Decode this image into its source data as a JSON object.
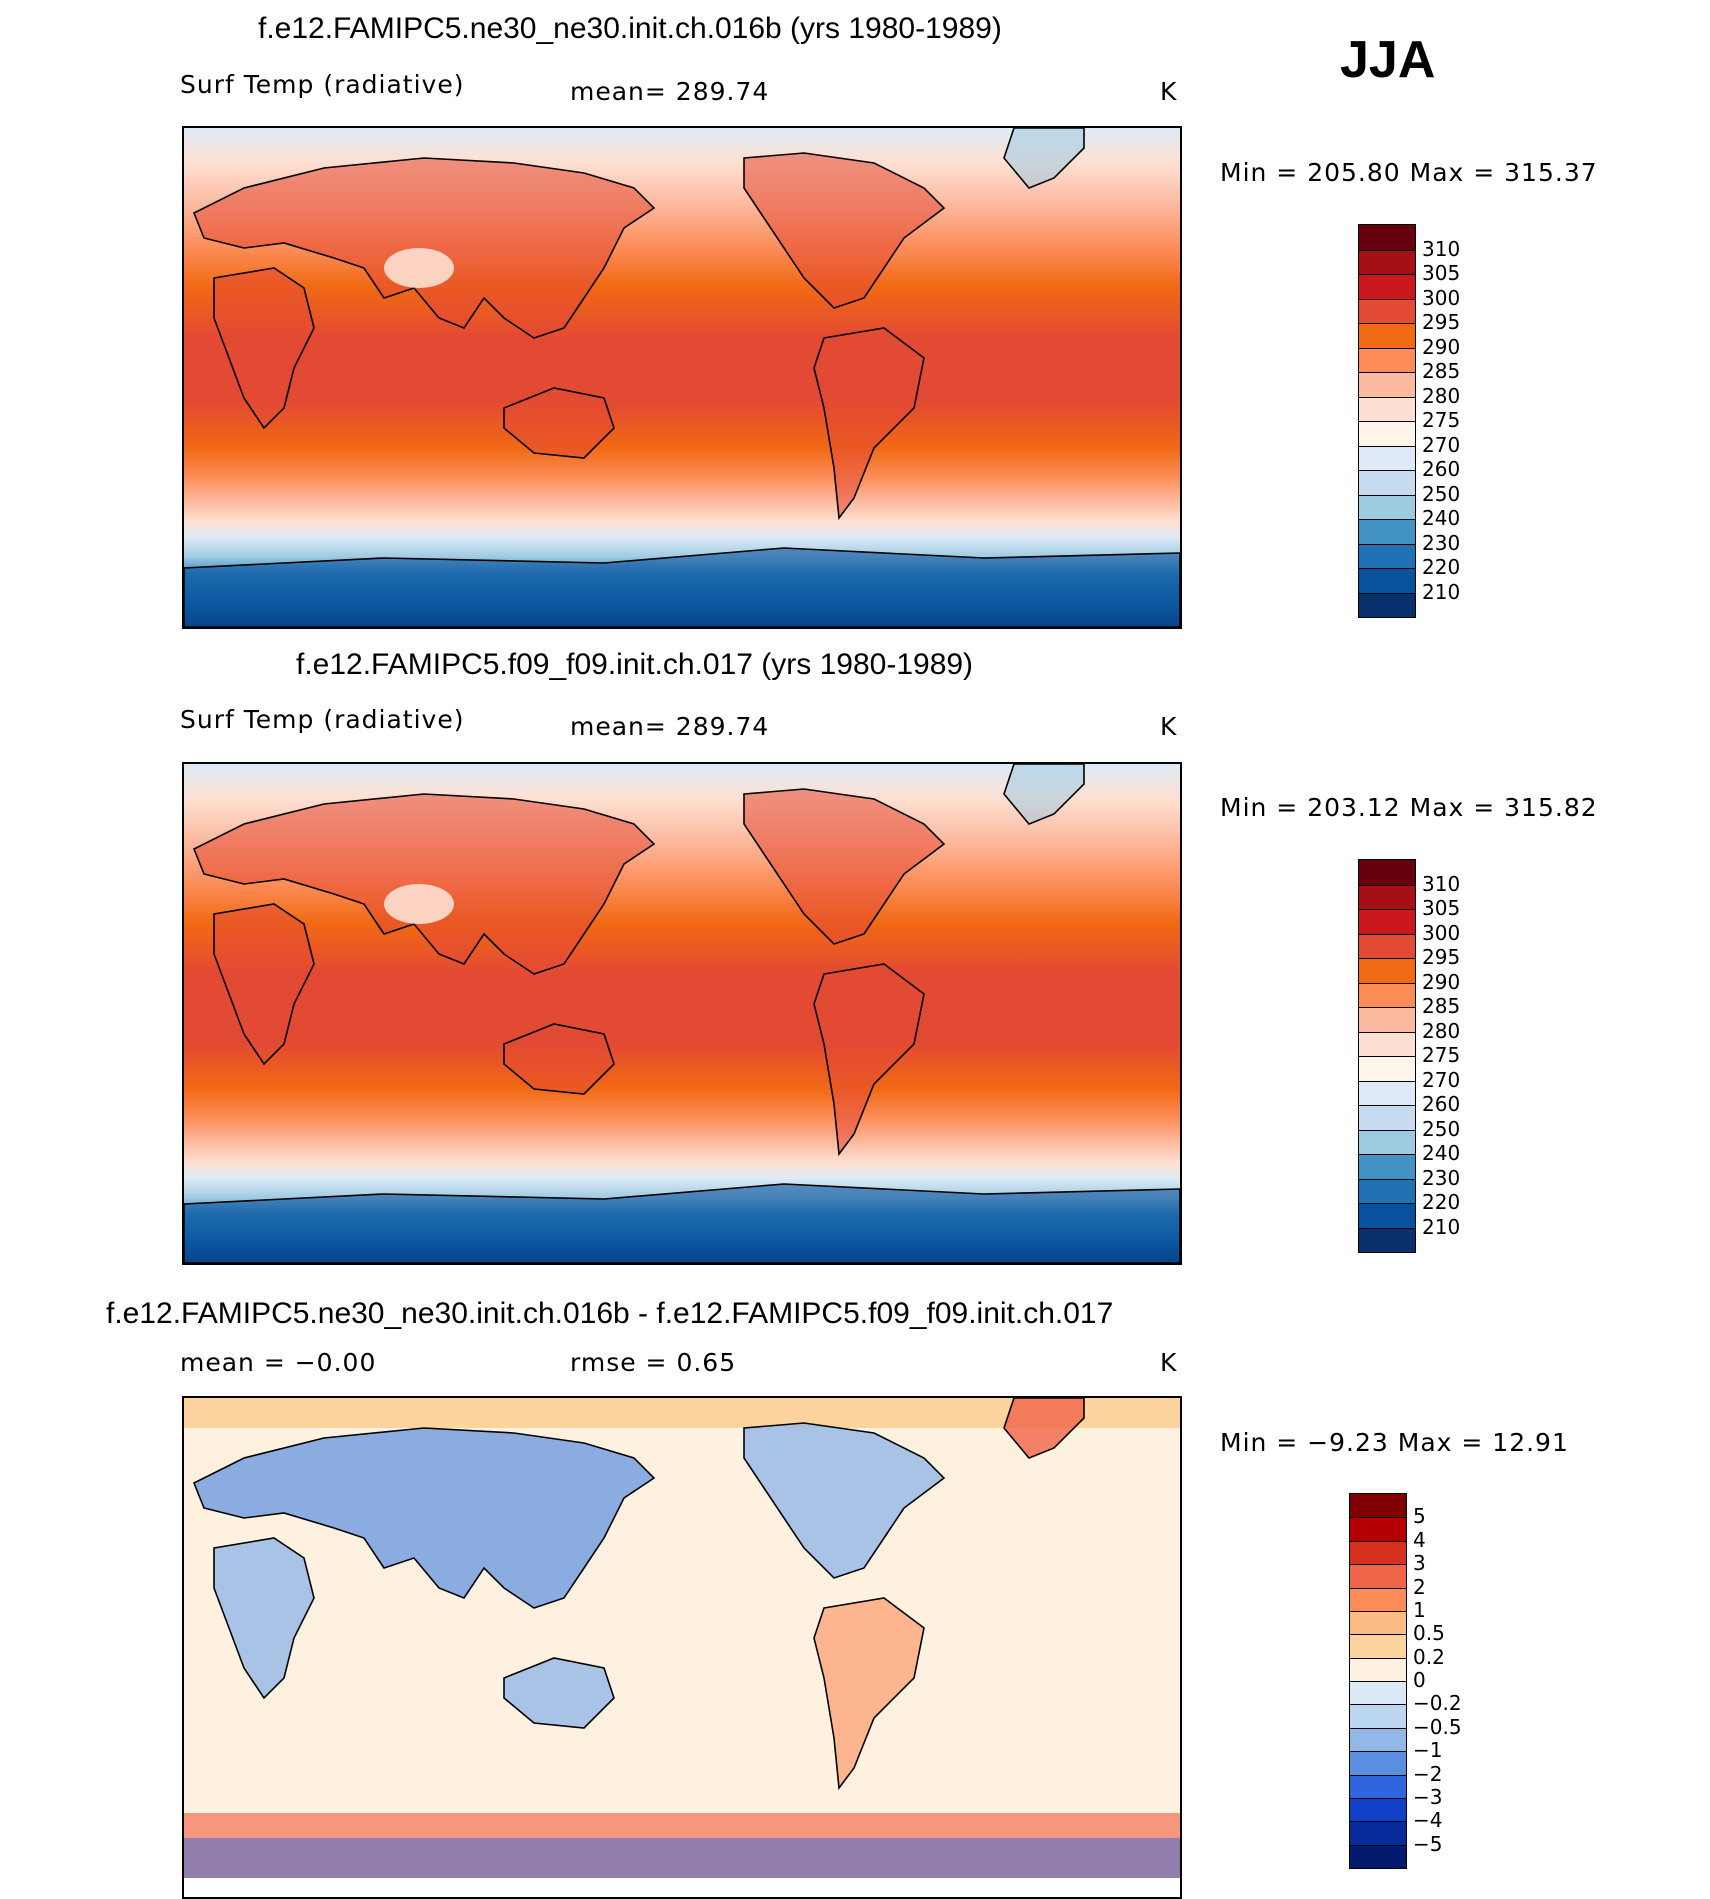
{
  "season": "JJA",
  "panels": [
    {
      "title": "f.e12.FAMIPC5.ne30_ne30.init.ch.016b (yrs 1980-1989)",
      "left_label": "Surf Temp (radiative)",
      "center_label": "mean= 289.74",
      "units": "K",
      "minmax": "Min = 205.80 Max = 315.37",
      "colorbar_labels": [
        "310",
        "305",
        "300",
        "295",
        "290",
        "285",
        "280",
        "275",
        "270",
        "260",
        "250",
        "240",
        "230",
        "220",
        "210"
      ]
    },
    {
      "title": "f.e12.FAMIPC5.f09_f09.init.ch.017 (yrs 1980-1989)",
      "left_label": "Surf Temp (radiative)",
      "center_label": "mean= 289.74",
      "units": "K",
      "minmax": "Min = 203.12 Max = 315.82",
      "colorbar_labels": [
        "310",
        "305",
        "300",
        "295",
        "290",
        "285",
        "280",
        "275",
        "270",
        "260",
        "250",
        "240",
        "230",
        "220",
        "210"
      ]
    },
    {
      "title": "f.e12.FAMIPC5.ne30_ne30.init.ch.016b - f.e12.FAMIPC5.f09_f09.init.ch.017",
      "left_label": "mean = −0.00",
      "center_label": "rmse = 0.65",
      "units": "K",
      "minmax": "Min = −9.23 Max = 12.91",
      "colorbar_labels": [
        "5",
        "4",
        "3",
        "2",
        "1",
        "0.5",
        "0.2",
        "0",
        "−0.2",
        "−0.5",
        "−1",
        "−2",
        "−3",
        "−4",
        "−5"
      ]
    }
  ],
  "colors": {
    "temp_scale": [
      "#67000d",
      "#a50f15",
      "#cb181d",
      "#e34a33",
      "#f16913",
      "#fc8d59",
      "#fcbba1",
      "#fee0d2",
      "#fff5eb",
      "#deebf7",
      "#c6dbef",
      "#9ecae1",
      "#4292c6",
      "#2171b5",
      "#08519c",
      "#08306b"
    ],
    "diff_scale": [
      "#7f0000",
      "#b30000",
      "#d7301f",
      "#ef6548",
      "#fc8d59",
      "#fdbb84",
      "#fdd49e",
      "#fff1e0",
      "#dceaf7",
      "#bcd6f0",
      "#93b8e8",
      "#5a8ee0",
      "#2f66dd",
      "#1240c8",
      "#082b9c",
      "#031a6e"
    ]
  }
}
